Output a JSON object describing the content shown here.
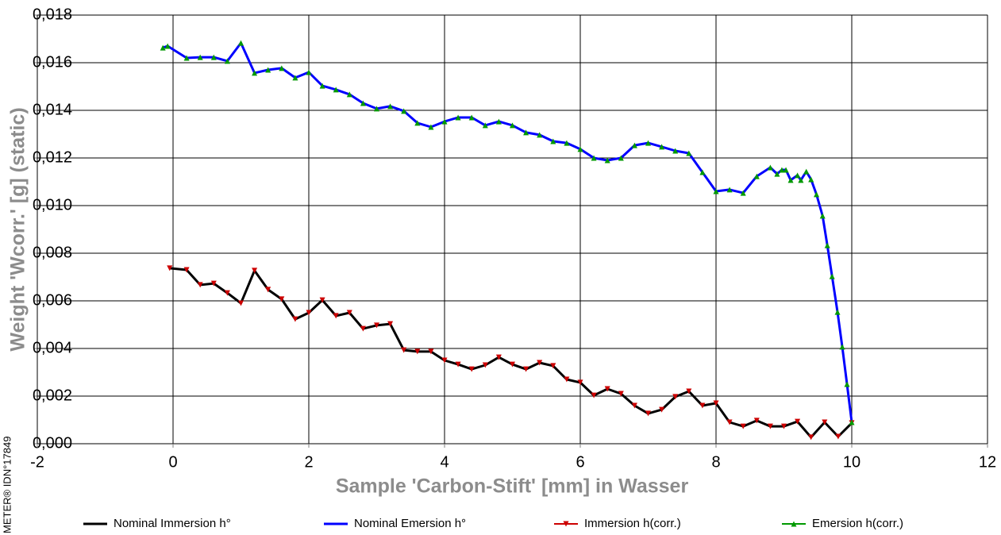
{
  "chart_data": {
    "type": "line",
    "xlabel": "Sample 'Carbon-Stift' [mm] in Wasser",
    "ylabel": "Weight 'Wcorr.' [g]  (static)",
    "side_note": "METER® IDN°17849",
    "xlim": [
      -2,
      12
    ],
    "xticks": [
      -2,
      0,
      2,
      4,
      6,
      8,
      10,
      12
    ],
    "ylim": [
      0,
      0.018
    ],
    "yticks": [
      {
        "value": 0,
        "label": "0,000"
      },
      {
        "value": 0.002,
        "label": "0,002"
      },
      {
        "value": 0.004,
        "label": "0,004"
      },
      {
        "value": 0.006,
        "label": "0,006"
      },
      {
        "value": 0.008,
        "label": "0,008"
      },
      {
        "value": 0.01,
        "label": "0,010"
      },
      {
        "value": 0.012,
        "label": "0,012"
      },
      {
        "value": 0.014,
        "label": "0,014"
      },
      {
        "value": 0.016,
        "label": "0,016"
      },
      {
        "value": 0.018,
        "label": "0,018"
      }
    ],
    "grid": true,
    "series": [
      {
        "name": "Nominal Immersion h°",
        "color": "#000000",
        "marker": "none",
        "x": [
          -0.05,
          0.2,
          0.4,
          0.6,
          0.8,
          1.0,
          1.2,
          1.4,
          1.6,
          1.8,
          2.0,
          2.2,
          2.4,
          2.6,
          2.8,
          3.0,
          3.2,
          3.4,
          3.6,
          3.8,
          4.0,
          4.2,
          4.4,
          4.6,
          4.8,
          5.0,
          5.2,
          5.4,
          5.6,
          5.8,
          6.0,
          6.2,
          6.4,
          6.6,
          6.8,
          7.0,
          7.2,
          7.4,
          7.6,
          7.8,
          8.0,
          8.2,
          8.4,
          8.6,
          8.8,
          9.0,
          9.2,
          9.4,
          9.6,
          9.8,
          10.0
        ],
        "values": [
          0.00737,
          0.0073,
          0.00667,
          0.00673,
          0.00633,
          0.0059,
          0.00727,
          0.00647,
          0.00607,
          0.00523,
          0.0055,
          0.00603,
          0.00537,
          0.0055,
          0.00483,
          0.00497,
          0.00503,
          0.00393,
          0.00387,
          0.00387,
          0.0035,
          0.00333,
          0.00313,
          0.0033,
          0.00363,
          0.00333,
          0.00313,
          0.0034,
          0.00327,
          0.0027,
          0.00257,
          0.00203,
          0.0023,
          0.0021,
          0.0016,
          0.00127,
          0.00143,
          0.00197,
          0.0022,
          0.0016,
          0.0017,
          0.0009,
          0.00073,
          0.00097,
          0.00073,
          0.00073,
          0.00093,
          0.00027,
          0.0009,
          0.0003,
          0.00087
        ]
      },
      {
        "name": "Nominal Emersion h°",
        "color": "#0000ff",
        "marker": "none",
        "x": [
          -0.15,
          -0.08,
          0.2,
          0.4,
          0.6,
          0.8,
          1.0,
          1.2,
          1.4,
          1.6,
          1.8,
          2.0,
          2.2,
          2.4,
          2.6,
          2.8,
          3.0,
          3.2,
          3.4,
          3.6,
          3.8,
          4.0,
          4.2,
          4.4,
          4.6,
          4.8,
          5.0,
          5.2,
          5.4,
          5.6,
          5.8,
          6.0,
          6.2,
          6.4,
          6.6,
          6.8,
          7.0,
          7.2,
          7.4,
          7.6,
          7.8,
          8.0,
          8.2,
          8.4,
          8.6,
          8.8,
          8.9,
          8.97,
          9.03,
          9.1,
          9.2,
          9.25,
          9.33,
          9.4,
          9.48,
          9.57,
          9.64,
          9.71,
          9.79,
          9.86,
          9.93,
          10.0
        ],
        "values": [
          0.01663,
          0.0167,
          0.0162,
          0.01623,
          0.01623,
          0.01607,
          0.01683,
          0.01557,
          0.0157,
          0.01577,
          0.01537,
          0.0156,
          0.01503,
          0.01487,
          0.01467,
          0.0143,
          0.01407,
          0.01417,
          0.01397,
          0.01347,
          0.0133,
          0.01353,
          0.0137,
          0.0137,
          0.01337,
          0.01353,
          0.01337,
          0.01307,
          0.01297,
          0.0127,
          0.01263,
          0.01237,
          0.012,
          0.0119,
          0.012,
          0.01253,
          0.01263,
          0.01247,
          0.0123,
          0.0122,
          0.0114,
          0.0106,
          0.01067,
          0.01053,
          0.01123,
          0.0116,
          0.01133,
          0.0115,
          0.0115,
          0.01107,
          0.01127,
          0.01107,
          0.01143,
          0.0111,
          0.01047,
          0.00957,
          0.00833,
          0.00703,
          0.00553,
          0.00407,
          0.0025,
          0.0009
        ]
      },
      {
        "name": "Immersion h(corr.)",
        "color": "#cc0000",
        "marker": "triangle-down",
        "x": [
          -0.05,
          0.2,
          0.4,
          0.6,
          0.8,
          1.0,
          1.2,
          1.4,
          1.6,
          1.8,
          2.0,
          2.2,
          2.4,
          2.6,
          2.8,
          3.0,
          3.2,
          3.4,
          3.6,
          3.8,
          4.0,
          4.2,
          4.4,
          4.6,
          4.8,
          5.0,
          5.2,
          5.4,
          5.6,
          5.8,
          6.0,
          6.2,
          6.4,
          6.6,
          6.8,
          7.0,
          7.2,
          7.4,
          7.6,
          7.8,
          8.0,
          8.2,
          8.4,
          8.6,
          8.8,
          9.0,
          9.2,
          9.4,
          9.6,
          9.8,
          10.0
        ],
        "values": [
          0.00737,
          0.0073,
          0.00667,
          0.00673,
          0.00633,
          0.0059,
          0.00727,
          0.00647,
          0.00607,
          0.00523,
          0.0055,
          0.00603,
          0.00537,
          0.0055,
          0.00483,
          0.00497,
          0.00503,
          0.00393,
          0.00387,
          0.00387,
          0.0035,
          0.00333,
          0.00313,
          0.0033,
          0.00363,
          0.00333,
          0.00313,
          0.0034,
          0.00327,
          0.0027,
          0.00257,
          0.00203,
          0.0023,
          0.0021,
          0.0016,
          0.00127,
          0.00143,
          0.00197,
          0.0022,
          0.0016,
          0.0017,
          0.0009,
          0.00073,
          0.00097,
          0.00073,
          0.00073,
          0.00093,
          0.00027,
          0.0009,
          0.0003,
          0.00087
        ]
      },
      {
        "name": "Emersion h(corr.)",
        "color": "#009900",
        "marker": "triangle-up",
        "x": [
          -0.15,
          -0.08,
          0.2,
          0.4,
          0.6,
          0.8,
          1.0,
          1.2,
          1.4,
          1.6,
          1.8,
          2.0,
          2.2,
          2.4,
          2.6,
          2.8,
          3.0,
          3.2,
          3.4,
          3.6,
          3.8,
          4.0,
          4.2,
          4.4,
          4.6,
          4.8,
          5.0,
          5.2,
          5.4,
          5.6,
          5.8,
          6.0,
          6.2,
          6.4,
          6.6,
          6.8,
          7.0,
          7.2,
          7.4,
          7.6,
          7.8,
          8.0,
          8.2,
          8.4,
          8.6,
          8.8,
          8.9,
          8.97,
          9.03,
          9.1,
          9.2,
          9.25,
          9.33,
          9.4,
          9.48,
          9.57,
          9.64,
          9.71,
          9.79,
          9.86,
          9.93,
          10.0
        ],
        "values": [
          0.01663,
          0.0167,
          0.0162,
          0.01623,
          0.01623,
          0.01607,
          0.01683,
          0.01557,
          0.0157,
          0.01577,
          0.01537,
          0.0156,
          0.01503,
          0.01487,
          0.01467,
          0.0143,
          0.01407,
          0.01417,
          0.01397,
          0.01347,
          0.0133,
          0.01353,
          0.0137,
          0.0137,
          0.01337,
          0.01353,
          0.01337,
          0.01307,
          0.01297,
          0.0127,
          0.01263,
          0.01237,
          0.012,
          0.0119,
          0.012,
          0.01253,
          0.01263,
          0.01247,
          0.0123,
          0.0122,
          0.0114,
          0.0106,
          0.01067,
          0.01053,
          0.01123,
          0.0116,
          0.01133,
          0.0115,
          0.0115,
          0.01107,
          0.01127,
          0.01107,
          0.01143,
          0.0111,
          0.01047,
          0.00957,
          0.00833,
          0.00703,
          0.00553,
          0.00407,
          0.0025,
          0.0009
        ]
      }
    ]
  }
}
